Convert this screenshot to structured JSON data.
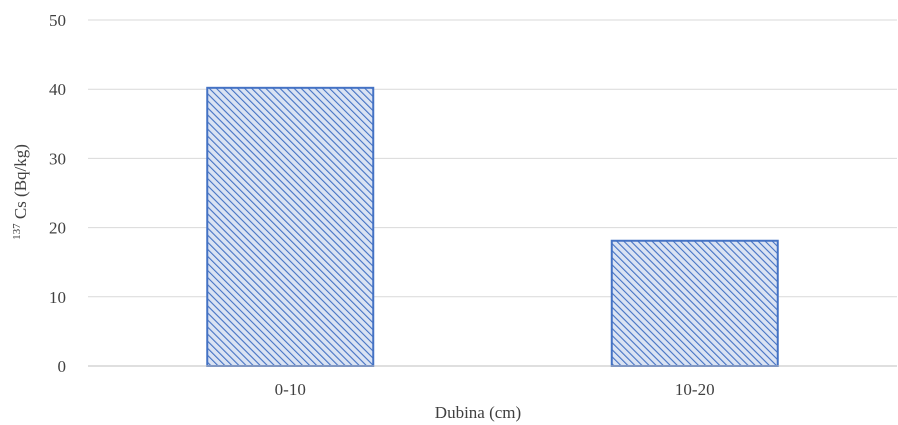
{
  "chart_data": {
    "type": "bar",
    "title": "",
    "categories": [
      "0-10",
      "10-20"
    ],
    "values": [
      40.2,
      18.1
    ],
    "xlabel": "Dubina (cm)",
    "ylabel": {
      "superscript": "137",
      "text": "Cs (Bq/kg)"
    },
    "ylim": [
      0,
      50
    ],
    "yticks": [
      "0",
      "10",
      "20",
      "30",
      "40",
      "50"
    ],
    "grid": true,
    "legend": "none",
    "colors": {
      "bar_fill": "#dae3f3",
      "bar_hatch": "#4472c4",
      "bar_stroke": "#4472c4",
      "gridline": "#d9d9d9",
      "axis": "#bfbfbf",
      "text": "#404040"
    }
  }
}
